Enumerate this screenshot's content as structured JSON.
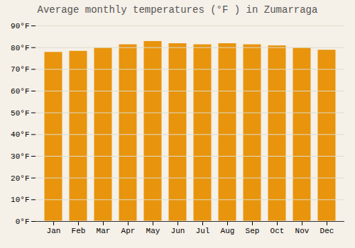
{
  "chart_data": {
    "type": "bar",
    "title": "Average monthly temperatures (°F ) in Zumarraga",
    "categories": [
      "Jan",
      "Feb",
      "Mar",
      "Apr",
      "May",
      "Jun",
      "Jul",
      "Aug",
      "Sep",
      "Oct",
      "Nov",
      "Dec"
    ],
    "values": [
      78,
      78.5,
      80,
      81.5,
      83,
      82,
      81.5,
      82,
      81.5,
      81,
      80,
      79
    ],
    "color": "#E8940C",
    "ylim": [
      0,
      90
    ],
    "yticks": [
      {
        "value": 0,
        "label": "0°F"
      },
      {
        "value": 10,
        "label": "10°F"
      },
      {
        "value": 20,
        "label": "20°F"
      },
      {
        "value": 30,
        "label": "30°F"
      },
      {
        "value": 40,
        "label": "40°F"
      },
      {
        "value": 50,
        "label": "50°F"
      },
      {
        "value": 60,
        "label": "60°F"
      },
      {
        "value": 70,
        "label": "70°F"
      },
      {
        "value": 80,
        "label": "80°F"
      },
      {
        "value": 90,
        "label": "90°F"
      }
    ],
    "grid": true
  }
}
